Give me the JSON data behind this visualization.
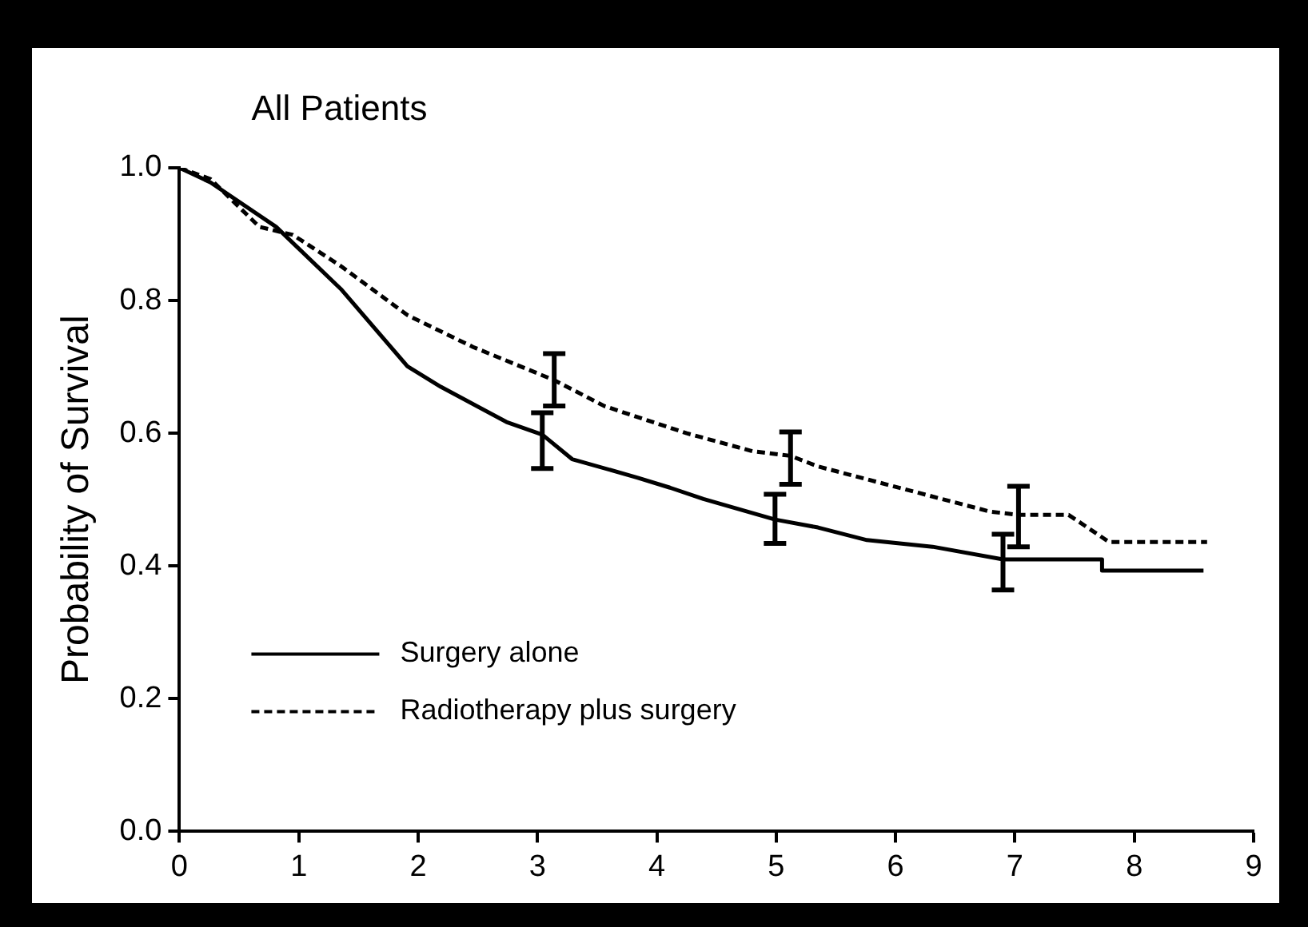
{
  "chart_data": {
    "type": "line",
    "title": "All Patients",
    "ylabel": "Probability of Survival",
    "xlim": [
      0,
      9
    ],
    "xticks": [
      0,
      1,
      2,
      3,
      4,
      5,
      6,
      7,
      8,
      9
    ],
    "ylim": [
      0,
      1
    ],
    "yticks": [
      {
        "value": 0,
        "label": "0.0"
      },
      0.2,
      0.4,
      0.6,
      0.8,
      {
        "value": 1,
        "label": "1.0"
      }
    ],
    "grid": false,
    "legend": "bottom left",
    "marker": "none",
    "series": [
      {
        "name": "Surgery alone",
        "color": "#000000",
        "line_style": "solid",
        "x": [
          0,
          0.26,
          0.81,
          1.36,
          1.91,
          2.19,
          2.74,
          3.04,
          3.29,
          3.84,
          4.11,
          4.39,
          4.99,
          5.35,
          5.76,
          6.31,
          6.9,
          7.73,
          7.73,
          8.58
        ],
        "values": [
          1,
          0.978,
          0.911,
          0.816,
          0.701,
          0.67,
          0.617,
          0.598,
          0.561,
          0.533,
          0.518,
          0.501,
          0.47,
          0.458,
          0.439,
          0.429,
          0.41,
          0.41,
          0.393,
          0.393
        ],
        "errors": [
          null,
          null,
          null,
          null,
          null,
          null,
          null,
          [
            0.547,
            0.631
          ],
          null,
          null,
          null,
          null,
          [
            0.434,
            0.508
          ],
          null,
          null,
          null,
          [
            0.364,
            0.448
          ],
          null,
          null,
          null
        ]
      },
      {
        "name": "Radiotherapy plus surgery",
        "color": "#000000",
        "line_style": "dashed",
        "x": [
          0,
          0.26,
          0.67,
          0.95,
          1.36,
          1.91,
          2.46,
          3.14,
          3.56,
          4.25,
          4.8,
          5.12,
          5.35,
          6.79,
          7.03,
          7.45,
          7.79,
          8.61
        ],
        "values": [
          1,
          0.983,
          0.911,
          0.899,
          0.851,
          0.778,
          0.73,
          0.68,
          0.641,
          0.6,
          0.573,
          0.566,
          0.55,
          0.482,
          0.477,
          0.477,
          0.436,
          0.436
        ],
        "errors": [
          null,
          null,
          null,
          null,
          null,
          null,
          null,
          [
            0.641,
            0.72
          ],
          null,
          null,
          null,
          [
            0.523,
            0.602
          ],
          null,
          null,
          [
            0.429,
            0.52
          ],
          null,
          null,
          null
        ]
      }
    ]
  }
}
